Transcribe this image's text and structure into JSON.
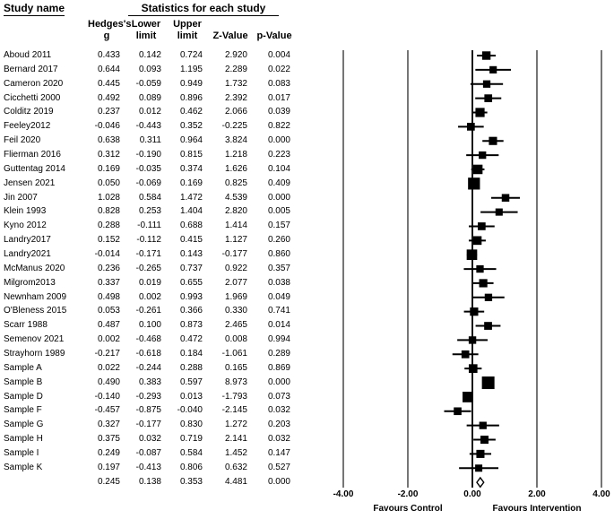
{
  "header": {
    "study_name_title": "Study name",
    "statistics_title": "Statistics for each study",
    "columns": {
      "hedges_line1": "Hedges's",
      "hedges_line2": "g",
      "lower_line1": "Lower",
      "lower_line2": "limit",
      "upper_line1": "Upper",
      "upper_line2": "limit",
      "z": "Z-Value",
      "p": "p-Value"
    }
  },
  "chart_data": {
    "type": "forest",
    "marker": "black filled square sized by study weight, horizontal CI line",
    "overall_marker": "open diamond",
    "x_axis": {
      "range": [
        -4,
        4
      ],
      "ticks": [
        -4,
        -2,
        0,
        2,
        4
      ],
      "tick_labels": [
        "-4.00",
        "-2.00",
        "0.00",
        "2.00",
        "4.00"
      ],
      "grid": "vertical lines at each tick, zero line emphasized"
    },
    "footer": {
      "favours_control": "Favours Control",
      "favours_intervention": "Favours Intervention"
    },
    "studies": [
      {
        "name": "Aboud 2011",
        "g": "0.433",
        "lower": "0.142",
        "upper": "0.724",
        "z": "2.920",
        "p": "0.004"
      },
      {
        "name": "Bernard 2017",
        "g": "0.644",
        "lower": "0.093",
        "upper": "1.195",
        "z": "2.289",
        "p": "0.022"
      },
      {
        "name": "Cameron 2020",
        "g": "0.445",
        "lower": "-0.059",
        "upper": "0.949",
        "z": "1.732",
        "p": "0.083"
      },
      {
        "name": "Cicchetti 2000",
        "g": "0.492",
        "lower": "0.089",
        "upper": "0.896",
        "z": "2.392",
        "p": "0.017"
      },
      {
        "name": "Colditz 2019",
        "g": "0.237",
        "lower": "0.012",
        "upper": "0.462",
        "z": "2.066",
        "p": "0.039"
      },
      {
        "name": "Feeley2012",
        "g": "-0.046",
        "lower": "-0.443",
        "upper": "0.352",
        "z": "-0.225",
        "p": "0.822"
      },
      {
        "name": "Feil 2020",
        "g": "0.638",
        "lower": "0.311",
        "upper": "0.964",
        "z": "3.824",
        "p": "0.000"
      },
      {
        "name": "Flierman 2016",
        "g": "0.312",
        "lower": "-0.190",
        "upper": "0.815",
        "z": "1.218",
        "p": "0.223"
      },
      {
        "name": "Guttentag 2014",
        "g": "0.169",
        "lower": "-0.035",
        "upper": "0.374",
        "z": "1.626",
        "p": "0.104"
      },
      {
        "name": "Jensen 2021",
        "g": "0.050",
        "lower": "-0.069",
        "upper": "0.169",
        "z": "0.825",
        "p": "0.409"
      },
      {
        "name": "Jin 2007",
        "g": "1.028",
        "lower": "0.584",
        "upper": "1.472",
        "z": "4.539",
        "p": "0.000"
      },
      {
        "name": "Klein 1993",
        "g": "0.828",
        "lower": "0.253",
        "upper": "1.404",
        "z": "2.820",
        "p": "0.005"
      },
      {
        "name": "Kyno 2012",
        "g": "0.288",
        "lower": "-0.111",
        "upper": "0.688",
        "z": "1.414",
        "p": "0.157"
      },
      {
        "name": "Landry2017",
        "g": "0.152",
        "lower": "-0.112",
        "upper": "0.415",
        "z": "1.127",
        "p": "0.260"
      },
      {
        "name": "Landry2021",
        "g": "-0.014",
        "lower": "-0.171",
        "upper": "0.143",
        "z": "-0.177",
        "p": "0.860"
      },
      {
        "name": "McManus 2020",
        "g": "0.236",
        "lower": "-0.265",
        "upper": "0.737",
        "z": "0.922",
        "p": "0.357"
      },
      {
        "name": "Milgrom2013",
        "g": "0.337",
        "lower": "0.019",
        "upper": "0.655",
        "z": "2.077",
        "p": "0.038"
      },
      {
        "name": "Newnham 2009",
        "g": "0.498",
        "lower": "0.002",
        "upper": "0.993",
        "z": "1.969",
        "p": "0.049"
      },
      {
        "name": "O'Bleness 2015",
        "g": "0.053",
        "lower": "-0.261",
        "upper": "0.366",
        "z": "0.330",
        "p": "0.741"
      },
      {
        "name": "Scarr 1988",
        "g": "0.487",
        "lower": "0.100",
        "upper": "0.873",
        "z": "2.465",
        "p": "0.014"
      },
      {
        "name": "Semenov 2021",
        "g": "0.002",
        "lower": "-0.468",
        "upper": "0.472",
        "z": "0.008",
        "p": "0.994"
      },
      {
        "name": "Strayhorn 1989",
        "g": "-0.217",
        "lower": "-0.618",
        "upper": "0.184",
        "z": "-1.061",
        "p": "0.289"
      },
      {
        "name": "Sample A",
        "g": "0.022",
        "lower": "-0.244",
        "upper": "0.288",
        "z": "0.165",
        "p": "0.869"
      },
      {
        "name": "Sample B",
        "g": "0.490",
        "lower": "0.383",
        "upper": "0.597",
        "z": "8.973",
        "p": "0.000"
      },
      {
        "name": "Sample D",
        "g": "-0.140",
        "lower": "-0.293",
        "upper": "0.013",
        "z": "-1.793",
        "p": "0.073"
      },
      {
        "name": "Sample F",
        "g": "-0.457",
        "lower": "-0.875",
        "upper": "-0.040",
        "z": "-2.145",
        "p": "0.032"
      },
      {
        "name": "Sample G",
        "g": "0.327",
        "lower": "-0.177",
        "upper": "0.830",
        "z": "1.272",
        "p": "0.203"
      },
      {
        "name": "Sample H",
        "g": "0.375",
        "lower": "0.032",
        "upper": "0.719",
        "z": "2.141",
        "p": "0.032"
      },
      {
        "name": "Sample I",
        "g": "0.249",
        "lower": "-0.087",
        "upper": "0.584",
        "z": "1.452",
        "p": "0.147"
      },
      {
        "name": "Sample K",
        "g": "0.197",
        "lower": "-0.413",
        "upper": "0.806",
        "z": "0.632",
        "p": "0.527"
      }
    ],
    "overall": {
      "name": "",
      "g": "0.245",
      "lower": "0.138",
      "upper": "0.353",
      "z": "4.481",
      "p": "0.000"
    }
  },
  "colors": {
    "background": "#ffffff",
    "text": "#000000",
    "marker": "#000000",
    "gridline": "#1a1a1a",
    "diamond_fill": "#ffffff"
  }
}
